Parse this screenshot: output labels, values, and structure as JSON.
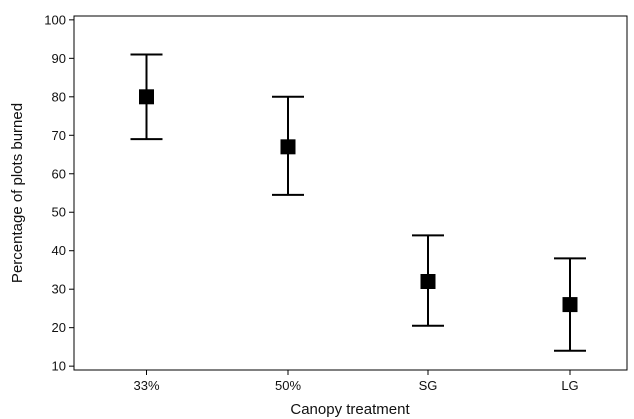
{
  "chart_data": {
    "type": "scatter",
    "xlabel": "Canopy treatment",
    "ylabel": "Percentage of plots burned",
    "categories": [
      "33%",
      "50%",
      "SG",
      "LG"
    ],
    "series": [
      {
        "values": [
          80,
          67,
          32,
          26
        ],
        "error_low": [
          69,
          54.5,
          20.5,
          14
        ],
        "error_high": [
          91,
          80,
          44,
          38
        ]
      }
    ],
    "ylim": [
      9,
      101
    ],
    "yticks": [
      10,
      20,
      30,
      40,
      50,
      60,
      70,
      80,
      90,
      100
    ],
    "grid": false,
    "marker_color": "#000000"
  }
}
